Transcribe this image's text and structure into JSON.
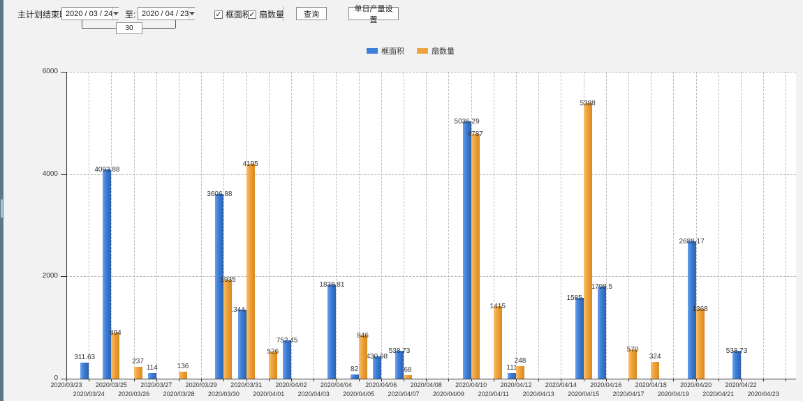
{
  "toolbar": {
    "main_label": "主计划结束时间:",
    "date_from": "2020 / 03 / 24",
    "to_label": "至:",
    "date_to": "2020 / 04 / 23",
    "interval_days": "30",
    "checkbox_frame_area": "框面积",
    "checkbox_fan_count": "扇数量",
    "query_button": "查询",
    "daily_output_button": "单日产量设置"
  },
  "legend": [
    {
      "label": "框面积",
      "color": "#3d7fd9"
    },
    {
      "label": "扇数量",
      "color": "#f0a33c"
    }
  ],
  "chart_data": {
    "type": "bar",
    "title": "",
    "xlabel": "",
    "ylabel": "",
    "ylim": [
      0,
      6000
    ],
    "yticks": [
      0,
      2000,
      4000,
      6000
    ],
    "grid": true,
    "legend_position": "top",
    "tick_label_layout": "two-row-alternating",
    "categories": [
      "2020/03/23",
      "2020/03/24",
      "2020/03/25",
      "2020/03/26",
      "2020/03/27",
      "2020/03/28",
      "2020/03/29",
      "2020/03/30",
      "2020/03/31",
      "2020/04/01",
      "2020/04/02",
      "2020/04/03",
      "2020/04/04",
      "2020/04/05",
      "2020/04/06",
      "2020/04/07",
      "2020/04/08",
      "2020/04/09",
      "2020/04/10",
      "2020/04/11",
      "2020/04/12",
      "2020/04/13",
      "2020/04/14",
      "2020/04/15",
      "2020/04/16",
      "2020/04/17",
      "2020/04/18",
      "2020/04/19",
      "2020/04/20",
      "2020/04/21",
      "2020/04/22",
      "2020/04/23"
    ],
    "series": [
      {
        "name": "框面积",
        "color": "#3d7fd9",
        "values": [
          null,
          311.63,
          4093.88,
          null,
          114,
          null,
          null,
          3606.88,
          1344.95,
          null,
          752.45,
          null,
          1838.81,
          82,
          430.98,
          538.73,
          null,
          null,
          5036.29,
          null,
          111,
          null,
          null,
          1585.96,
          1798.5,
          null,
          null,
          null,
          2688.17,
          null,
          538.73,
          null
        ]
      },
      {
        "name": "扇数量",
        "color": "#f0a33c",
        "values": [
          null,
          null,
          894,
          237,
          null,
          136,
          null,
          1935,
          4195,
          526,
          null,
          null,
          null,
          846,
          null,
          68,
          null,
          null,
          4787,
          1415,
          248,
          null,
          null,
          5388,
          null,
          570,
          324,
          null,
          1368,
          null,
          null,
          null
        ]
      }
    ]
  }
}
